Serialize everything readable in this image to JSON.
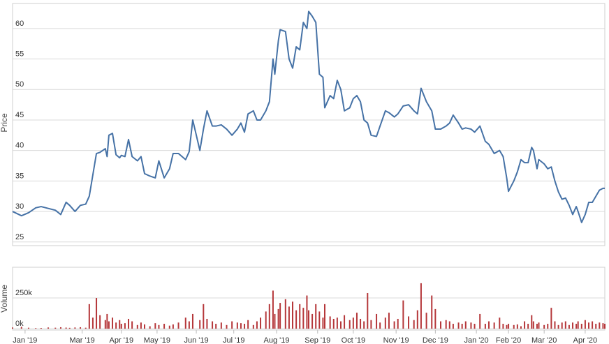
{
  "chart_data": [
    {
      "type": "line",
      "y_label": "Price",
      "color": "#4672a6",
      "grid": true,
      "x": [
        0,
        5,
        9,
        13,
        16,
        20,
        24,
        27,
        30,
        32,
        35,
        38,
        41,
        43,
        45,
        47,
        49,
        52,
        53,
        54,
        56,
        58,
        60,
        61,
        63,
        65,
        67,
        70,
        72,
        74,
        77,
        80,
        82,
        85,
        88,
        90,
        93,
        97,
        99,
        101,
        105,
        107,
        109,
        112,
        114,
        117,
        120,
        123,
        126,
        128,
        130,
        132,
        135,
        137,
        139,
        142,
        144,
        146,
        147,
        149,
        150,
        153,
        155,
        157,
        159,
        161,
        163,
        165,
        166,
        168,
        170,
        172,
        174,
        175,
        178,
        180,
        182,
        184,
        186,
        189,
        191,
        193,
        195,
        197,
        199,
        201,
        204,
        206,
        209,
        211,
        214,
        216,
        219,
        222,
        225,
        227,
        229,
        232,
        235,
        237,
        240,
        243,
        245,
        247,
        250,
        252,
        254,
        257,
        259,
        262,
        265,
        267,
        270,
        273,
        275,
        277,
        278,
        281,
        283,
        285,
        287,
        289,
        291,
        292,
        294,
        295,
        298,
        300,
        302,
        304,
        306,
        308,
        310,
        312,
        314,
        316,
        317,
        319,
        321,
        323,
        325,
        327,
        329,
        331,
        332
      ],
      "values": [
        30.0,
        29.3,
        29.8,
        30.6,
        30.8,
        30.5,
        30.2,
        29.5,
        31.5,
        31.0,
        30.0,
        31.0,
        31.2,
        32.5,
        36.0,
        39.5,
        39.7,
        40.3,
        39.0,
        42.5,
        42.8,
        39.3,
        38.8,
        39.2,
        39.0,
        41.8,
        39.0,
        38.3,
        39.0,
        36.2,
        35.8,
        35.5,
        38.3,
        35.5,
        37.0,
        39.5,
        39.5,
        38.5,
        39.8,
        45.0,
        40.0,
        43.5,
        46.5,
        44.0,
        44.0,
        44.2,
        43.5,
        42.5,
        43.5,
        44.5,
        43.0,
        46.0,
        46.5,
        45.0,
        45.0,
        46.5,
        48.0,
        55.0,
        52.5,
        58.0,
        59.8,
        59.5,
        55.0,
        53.5,
        57.0,
        56.5,
        61.0,
        60.0,
        62.8,
        62.0,
        61.0,
        52.5,
        52.0,
        47.0,
        49.0,
        48.5,
        51.5,
        50.0,
        46.5,
        47.0,
        48.5,
        49.0,
        48.0,
        45.0,
        44.5,
        42.5,
        42.3,
        44.0,
        46.5,
        46.2,
        45.5,
        46.0,
        47.3,
        47.5,
        46.5,
        46.0,
        50.2,
        48.0,
        46.5,
        43.5,
        43.5,
        44.0,
        44.5,
        45.8,
        44.5,
        43.5,
        43.7,
        43.5,
        43.0,
        44.0,
        41.5,
        41.0,
        39.5,
        40.0,
        39.0,
        35.5,
        33.3,
        35.0,
        36.5,
        38.5,
        38.0,
        38.0,
        40.5,
        40.0,
        37.0,
        38.5,
        37.8,
        37.0,
        37.3,
        35.0,
        33.2,
        32.0,
        32.2,
        31.0,
        29.5,
        30.8,
        30.0,
        28.2,
        29.5,
        31.5,
        31.5,
        32.5,
        33.5,
        33.8,
        33.8
      ],
      "xlim": [
        0,
        332
      ],
      "ylim": [
        24.4,
        64.1
      ],
      "yticks": [
        25,
        30,
        35,
        40,
        45,
        50,
        55,
        60
      ]
    },
    {
      "type": "bar",
      "y_label": "Volume",
      "color": "#b5373a",
      "grid": true,
      "x": [
        0,
        5,
        9,
        13,
        16,
        20,
        24,
        27,
        30,
        32,
        35,
        38,
        41,
        43,
        45,
        47,
        49,
        52,
        53,
        54,
        56,
        58,
        60,
        61,
        63,
        65,
        67,
        70,
        72,
        74,
        77,
        80,
        82,
        85,
        88,
        90,
        93,
        97,
        99,
        101,
        105,
        107,
        109,
        112,
        114,
        117,
        120,
        123,
        126,
        128,
        130,
        132,
        135,
        137,
        139,
        142,
        144,
        146,
        147,
        149,
        150,
        153,
        155,
        157,
        159,
        161,
        163,
        165,
        166,
        168,
        170,
        172,
        174,
        175,
        178,
        180,
        182,
        184,
        186,
        189,
        191,
        193,
        195,
        197,
        199,
        201,
        204,
        206,
        209,
        211,
        214,
        216,
        219,
        222,
        225,
        227,
        229,
        232,
        235,
        237,
        240,
        243,
        245,
        247,
        250,
        252,
        254,
        257,
        259,
        262,
        265,
        267,
        270,
        273,
        275,
        277,
        278,
        281,
        283,
        285,
        287,
        289,
        291,
        292,
        294,
        295,
        298,
        300,
        302,
        304,
        306,
        308,
        310,
        312,
        314,
        316,
        317,
        319,
        321,
        323,
        325,
        327,
        329,
        331,
        332
      ],
      "values": [
        10000,
        15000,
        8000,
        5000,
        6000,
        10000,
        8000,
        12000,
        9000,
        7000,
        10000,
        12000,
        8000,
        200000,
        90000,
        250000,
        110000,
        70000,
        120000,
        60000,
        90000,
        50000,
        70000,
        40000,
        45000,
        80000,
        60000,
        30000,
        50000,
        35000,
        20000,
        45000,
        30000,
        40000,
        25000,
        35000,
        50000,
        90000,
        60000,
        120000,
        70000,
        200000,
        80000,
        60000,
        40000,
        50000,
        30000,
        60000,
        50000,
        45000,
        40000,
        70000,
        30000,
        60000,
        90000,
        140000,
        200000,
        310000,
        120000,
        160000,
        210000,
        240000,
        180000,
        220000,
        150000,
        200000,
        170000,
        270000,
        150000,
        120000,
        200000,
        140000,
        90000,
        200000,
        100000,
        80000,
        90000,
        60000,
        110000,
        70000,
        90000,
        130000,
        80000,
        60000,
        290000,
        70000,
        120000,
        50000,
        90000,
        130000,
        60000,
        80000,
        230000,
        100000,
        70000,
        150000,
        370000,
        130000,
        270000,
        160000,
        60000,
        70000,
        60000,
        40000,
        50000,
        40000,
        60000,
        50000,
        40000,
        120000,
        40000,
        60000,
        50000,
        90000,
        40000,
        30000,
        40000,
        30000,
        35000,
        20000,
        60000,
        40000,
        110000,
        60000,
        40000,
        50000,
        30000,
        40000,
        170000,
        60000,
        30000,
        50000,
        60000,
        30000,
        50000,
        40000,
        60000,
        40000,
        70000,
        50000,
        60000,
        40000,
        50000,
        45000,
        40000
      ],
      "xlim": [
        0,
        332
      ],
      "ylim": [
        -11000,
        500000
      ],
      "yticks": [
        {
          "value": 0,
          "label": "0k"
        },
        {
          "value": 250000,
          "label": "250k"
        }
      ],
      "xticks": [
        {
          "value": 7,
          "label": "Jan '19"
        },
        {
          "value": 39,
          "label": "Mar '19"
        },
        {
          "value": 61,
          "label": "Apr '19"
        },
        {
          "value": 81,
          "label": "May '19"
        },
        {
          "value": 103,
          "label": "Jun '19"
        },
        {
          "value": 124,
          "label": "Jul '19"
        },
        {
          "value": 148,
          "label": "Aug '19"
        },
        {
          "value": 171,
          "label": "Sep '19"
        },
        {
          "value": 191,
          "label": "Oct '19"
        },
        {
          "value": 215,
          "label": "Nov '19"
        },
        {
          "value": 237,
          "label": "Dec '19"
        },
        {
          "value": 260,
          "label": "Jan '20"
        },
        {
          "value": 278,
          "label": "Feb '20"
        },
        {
          "value": 298,
          "label": "Mar '20"
        },
        {
          "value": 321,
          "label": "Apr '20"
        }
      ]
    }
  ]
}
